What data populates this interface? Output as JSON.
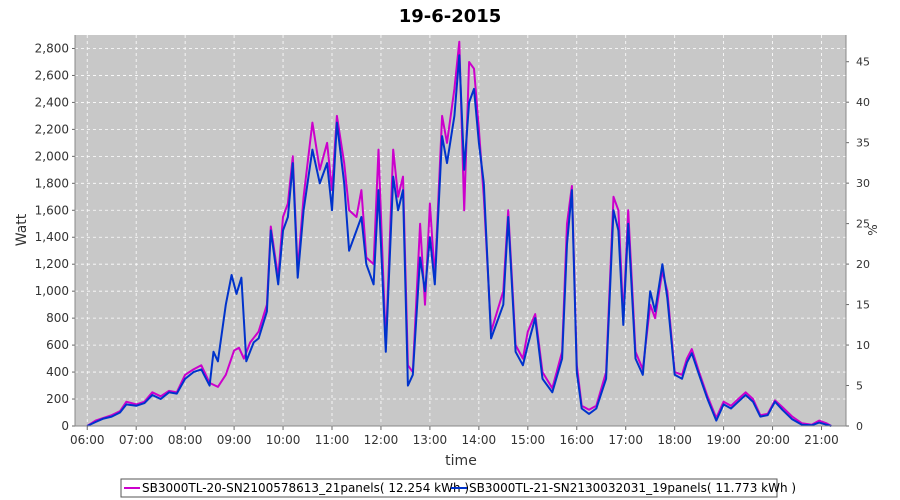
{
  "chart_data": {
    "type": "line",
    "title": "19-6-2015",
    "xlabel": "time",
    "ylabel": "Watt",
    "y2label": "%",
    "x_ticks": [
      "06:00",
      "07:00",
      "08:00",
      "09:00",
      "10:00",
      "11:00",
      "12:00",
      "13:00",
      "14:00",
      "15:00",
      "16:00",
      "17:00",
      "18:00",
      "19:00",
      "20:00",
      "21:00"
    ],
    "y_ticks": [
      "0",
      "200",
      "400",
      "600",
      "800",
      "1,000",
      "1,200",
      "1,400",
      "1,600",
      "1,800",
      "2,000",
      "2,200",
      "2,400",
      "2,600",
      "2,800"
    ],
    "y2_ticks": [
      "0",
      "5",
      "10",
      "15",
      "20",
      "25",
      "30",
      "35",
      "40",
      "45"
    ],
    "xlim": [
      5.75,
      21.5
    ],
    "ylim": [
      0,
      2900
    ],
    "y2lim": [
      0,
      48.3
    ],
    "grid": true,
    "legend_position": "bottom",
    "series": [
      {
        "name": "SB3000TL-20-SN2100578613_21panels( 12.254 kWh )",
        "color": "#cc00cc",
        "points": [
          [
            6.0,
            0
          ],
          [
            6.17,
            40
          ],
          [
            6.33,
            60
          ],
          [
            6.5,
            80
          ],
          [
            6.67,
            110
          ],
          [
            6.8,
            180
          ],
          [
            7.0,
            160
          ],
          [
            7.17,
            180
          ],
          [
            7.33,
            250
          ],
          [
            7.5,
            220
          ],
          [
            7.67,
            260
          ],
          [
            7.83,
            250
          ],
          [
            8.0,
            380
          ],
          [
            8.17,
            420
          ],
          [
            8.33,
            450
          ],
          [
            8.5,
            320
          ],
          [
            8.67,
            290
          ],
          [
            8.83,
            380
          ],
          [
            9.0,
            560
          ],
          [
            9.1,
            580
          ],
          [
            9.2,
            500
          ],
          [
            9.33,
            620
          ],
          [
            9.5,
            700
          ],
          [
            9.67,
            900
          ],
          [
            9.75,
            1480
          ],
          [
            9.9,
            1100
          ],
          [
            10.0,
            1550
          ],
          [
            10.1,
            1650
          ],
          [
            10.2,
            2000
          ],
          [
            10.3,
            1150
          ],
          [
            10.42,
            1700
          ],
          [
            10.6,
            2250
          ],
          [
            10.75,
            1900
          ],
          [
            10.9,
            2100
          ],
          [
            11.0,
            1750
          ],
          [
            11.1,
            2300
          ],
          [
            11.25,
            1950
          ],
          [
            11.35,
            1600
          ],
          [
            11.5,
            1550
          ],
          [
            11.6,
            1750
          ],
          [
            11.7,
            1250
          ],
          [
            11.85,
            1200
          ],
          [
            11.95,
            2050
          ],
          [
            12.1,
            600
          ],
          [
            12.25,
            2050
          ],
          [
            12.35,
            1700
          ],
          [
            12.45,
            1850
          ],
          [
            12.55,
            450
          ],
          [
            12.65,
            400
          ],
          [
            12.8,
            1500
          ],
          [
            12.9,
            900
          ],
          [
            13.0,
            1650
          ],
          [
            13.1,
            1100
          ],
          [
            13.25,
            2300
          ],
          [
            13.35,
            2100
          ],
          [
            13.5,
            2500
          ],
          [
            13.6,
            2850
          ],
          [
            13.7,
            1600
          ],
          [
            13.8,
            2700
          ],
          [
            13.9,
            2650
          ],
          [
            14.0,
            2200
          ],
          [
            14.1,
            1700
          ],
          [
            14.25,
            700
          ],
          [
            14.5,
            1000
          ],
          [
            14.6,
            1600
          ],
          [
            14.75,
            600
          ],
          [
            14.9,
            500
          ],
          [
            15.0,
            700
          ],
          [
            15.15,
            830
          ],
          [
            15.3,
            400
          ],
          [
            15.5,
            280
          ],
          [
            15.7,
            550
          ],
          [
            15.8,
            1500
          ],
          [
            15.9,
            1780
          ],
          [
            16.0,
            450
          ],
          [
            16.1,
            150
          ],
          [
            16.25,
            120
          ],
          [
            16.4,
            150
          ],
          [
            16.6,
            400
          ],
          [
            16.75,
            1700
          ],
          [
            16.85,
            1600
          ],
          [
            16.95,
            800
          ],
          [
            17.05,
            1600
          ],
          [
            17.2,
            550
          ],
          [
            17.35,
            420
          ],
          [
            17.5,
            900
          ],
          [
            17.6,
            800
          ],
          [
            17.75,
            1150
          ],
          [
            17.85,
            1000
          ],
          [
            18.0,
            400
          ],
          [
            18.15,
            380
          ],
          [
            18.25,
            500
          ],
          [
            18.35,
            570
          ],
          [
            18.5,
            400
          ],
          [
            18.67,
            220
          ],
          [
            18.85,
            60
          ],
          [
            19.0,
            180
          ],
          [
            19.15,
            150
          ],
          [
            19.3,
            200
          ],
          [
            19.45,
            250
          ],
          [
            19.6,
            200
          ],
          [
            19.75,
            80
          ],
          [
            19.9,
            90
          ],
          [
            20.05,
            190
          ],
          [
            20.2,
            140
          ],
          [
            20.4,
            70
          ],
          [
            20.6,
            20
          ],
          [
            20.8,
            10
          ],
          [
            20.95,
            40
          ],
          [
            21.1,
            20
          ],
          [
            21.2,
            0
          ]
        ]
      },
      {
        "name": "SB3000TL-21-SN2130032031_19panels( 11.773 kWh )",
        "color": "#0033cc",
        "points": [
          [
            6.0,
            0
          ],
          [
            6.17,
            30
          ],
          [
            6.33,
            55
          ],
          [
            6.5,
            70
          ],
          [
            6.67,
            100
          ],
          [
            6.8,
            160
          ],
          [
            7.0,
            150
          ],
          [
            7.17,
            170
          ],
          [
            7.33,
            230
          ],
          [
            7.5,
            200
          ],
          [
            7.67,
            250
          ],
          [
            7.83,
            240
          ],
          [
            8.0,
            350
          ],
          [
            8.17,
            400
          ],
          [
            8.33,
            420
          ],
          [
            8.5,
            300
          ],
          [
            8.58,
            550
          ],
          [
            8.67,
            480
          ],
          [
            8.83,
            900
          ],
          [
            8.95,
            1120
          ],
          [
            9.05,
            980
          ],
          [
            9.15,
            1100
          ],
          [
            9.25,
            480
          ],
          [
            9.4,
            620
          ],
          [
            9.5,
            650
          ],
          [
            9.67,
            850
          ],
          [
            9.75,
            1450
          ],
          [
            9.9,
            1050
          ],
          [
            10.0,
            1450
          ],
          [
            10.1,
            1550
          ],
          [
            10.2,
            1950
          ],
          [
            10.3,
            1100
          ],
          [
            10.42,
            1600
          ],
          [
            10.6,
            2050
          ],
          [
            10.75,
            1800
          ],
          [
            10.9,
            1950
          ],
          [
            11.0,
            1600
          ],
          [
            11.1,
            2250
          ],
          [
            11.25,
            1800
          ],
          [
            11.35,
            1300
          ],
          [
            11.5,
            1450
          ],
          [
            11.6,
            1550
          ],
          [
            11.7,
            1200
          ],
          [
            11.85,
            1050
          ],
          [
            11.95,
            1750
          ],
          [
            12.1,
            550
          ],
          [
            12.25,
            1850
          ],
          [
            12.35,
            1600
          ],
          [
            12.45,
            1750
          ],
          [
            12.55,
            300
          ],
          [
            12.65,
            380
          ],
          [
            12.8,
            1250
          ],
          [
            12.9,
            1000
          ],
          [
            13.0,
            1400
          ],
          [
            13.1,
            1050
          ],
          [
            13.25,
            2150
          ],
          [
            13.35,
            1950
          ],
          [
            13.5,
            2300
          ],
          [
            13.6,
            2750
          ],
          [
            13.7,
            1900
          ],
          [
            13.8,
            2400
          ],
          [
            13.9,
            2500
          ],
          [
            14.0,
            2100
          ],
          [
            14.1,
            1800
          ],
          [
            14.25,
            650
          ],
          [
            14.5,
            900
          ],
          [
            14.6,
            1550
          ],
          [
            14.75,
            550
          ],
          [
            14.9,
            450
          ],
          [
            15.0,
            600
          ],
          [
            15.15,
            800
          ],
          [
            15.3,
            350
          ],
          [
            15.5,
            250
          ],
          [
            15.7,
            500
          ],
          [
            15.8,
            1350
          ],
          [
            15.9,
            1750
          ],
          [
            16.0,
            400
          ],
          [
            16.1,
            130
          ],
          [
            16.25,
            90
          ],
          [
            16.4,
            130
          ],
          [
            16.6,
            350
          ],
          [
            16.75,
            1600
          ],
          [
            16.85,
            1450
          ],
          [
            16.95,
            750
          ],
          [
            17.05,
            1500
          ],
          [
            17.2,
            500
          ],
          [
            17.35,
            380
          ],
          [
            17.5,
            1000
          ],
          [
            17.6,
            850
          ],
          [
            17.75,
            1200
          ],
          [
            17.85,
            950
          ],
          [
            18.0,
            380
          ],
          [
            18.15,
            350
          ],
          [
            18.25,
            470
          ],
          [
            18.35,
            540
          ],
          [
            18.5,
            380
          ],
          [
            18.67,
            200
          ],
          [
            18.85,
            40
          ],
          [
            19.0,
            160
          ],
          [
            19.15,
            130
          ],
          [
            19.3,
            180
          ],
          [
            19.45,
            230
          ],
          [
            19.6,
            180
          ],
          [
            19.75,
            70
          ],
          [
            19.9,
            80
          ],
          [
            20.05,
            180
          ],
          [
            20.2,
            120
          ],
          [
            20.4,
            50
          ],
          [
            20.6,
            10
          ],
          [
            20.8,
            5
          ],
          [
            20.95,
            25
          ],
          [
            21.1,
            10
          ],
          [
            21.2,
            0
          ]
        ]
      }
    ]
  }
}
